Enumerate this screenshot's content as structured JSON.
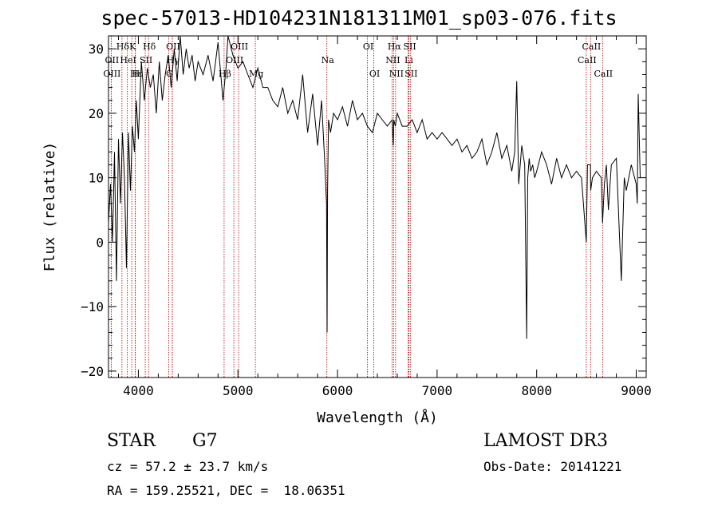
{
  "chart_data": {
    "type": "line",
    "title": "spec-57013-HD104231N181311M01_sp03-076.fits",
    "xlabel": "Wavelength (Å)",
    "ylabel": "Flux (relative)",
    "xlim": [
      3700,
      9100
    ],
    "ylim": [
      -21,
      32
    ],
    "xticks": [
      4000,
      5000,
      6000,
      7000,
      8000,
      9000
    ],
    "yticks": [
      -20,
      -10,
      0,
      10,
      20,
      30
    ],
    "series": [
      {
        "name": "spectrum",
        "x": [
          3700,
          3720,
          3740,
          3760,
          3780,
          3800,
          3820,
          3840,
          3860,
          3880,
          3900,
          3920,
          3940,
          3960,
          3980,
          4000,
          4030,
          4060,
          4090,
          4120,
          4150,
          4180,
          4210,
          4240,
          4270,
          4300,
          4330,
          4360,
          4390,
          4420,
          4450,
          4480,
          4510,
          4540,
          4570,
          4600,
          4650,
          4700,
          4750,
          4800,
          4850,
          4880,
          4900,
          4950,
          5000,
          5050,
          5100,
          5150,
          5200,
          5250,
          5300,
          5350,
          5400,
          5450,
          5500,
          5550,
          5600,
          5650,
          5700,
          5750,
          5800,
          5840,
          5870,
          5890,
          5895,
          5900,
          5910,
          5930,
          5960,
          6000,
          6050,
          6100,
          6150,
          6200,
          6250,
          6300,
          6350,
          6400,
          6450,
          6500,
          6550,
          6560,
          6565,
          6580,
          6600,
          6650,
          6700,
          6750,
          6800,
          6850,
          6900,
          6950,
          7000,
          7050,
          7100,
          7150,
          7200,
          7250,
          7300,
          7350,
          7400,
          7450,
          7500,
          7550,
          7600,
          7650,
          7700,
          7750,
          7780,
          7800,
          7820,
          7850,
          7880,
          7900,
          7910,
          7925,
          7940,
          7960,
          7980,
          8000,
          8050,
          8100,
          8150,
          8200,
          8250,
          8300,
          8350,
          8400,
          8450,
          8498,
          8510,
          8540,
          8542,
          8560,
          8600,
          8650,
          8662,
          8680,
          8700,
          8720,
          8750,
          8800,
          8850,
          8880,
          8900,
          8950,
          9000,
          9010,
          9020,
          9040
        ],
        "y": [
          3,
          9,
          0,
          14,
          -6,
          16,
          6,
          17,
          10,
          -4,
          17,
          8,
          18,
          14,
          22,
          16,
          28,
          22,
          27,
          24,
          26,
          20,
          28,
          22,
          26,
          29,
          24,
          30,
          25,
          32,
          26,
          30,
          27,
          29,
          25,
          28,
          26,
          29,
          25,
          31,
          22,
          27,
          32,
          29,
          27,
          28,
          26,
          24,
          27,
          24,
          24,
          22,
          21,
          24,
          20,
          22,
          19,
          26,
          17,
          23,
          15,
          22,
          13,
          6,
          -14,
          8,
          19,
          17,
          20,
          19,
          21,
          18,
          22,
          19,
          20,
          18,
          17,
          20,
          19,
          18,
          19,
          15,
          19,
          18,
          20,
          18,
          18,
          19,
          17,
          19,
          16,
          17,
          16,
          17,
          16,
          15,
          16,
          14,
          15,
          13,
          14,
          16,
          12,
          14,
          17,
          13,
          15,
          11,
          14,
          25,
          9,
          15,
          12,
          -15,
          10,
          13,
          11,
          12,
          10,
          11,
          14,
          12,
          9,
          13,
          10,
          12,
          10,
          11,
          10,
          0,
          12,
          12,
          8,
          10,
          11,
          10,
          3,
          9,
          12,
          5,
          12,
          13,
          -6,
          10,
          8,
          12,
          9,
          6,
          23,
          10
        ]
      }
    ],
    "lines": [
      {
        "name": "Hδ",
        "x": 3835,
        "row": 0
      },
      {
        "name": "K",
        "x": 3934,
        "row": 0
      },
      {
        "name": "Hδ",
        "x": 4102,
        "row": 0
      },
      {
        "name": "OII",
        "x": 4341,
        "row": 0
      },
      {
        "name": "OIII",
        "x": 5007,
        "row": 0
      },
      {
        "name": "OI",
        "x": 6300,
        "row": 0
      },
      {
        "name": "Hα",
        "x": 6563,
        "row": 0
      },
      {
        "name": "SII",
        "x": 6717,
        "row": 0
      },
      {
        "name": "CaII",
        "x": 8542,
        "row": 0
      },
      {
        "name": "OII",
        "x": 3727,
        "row": 1
      },
      {
        "name": "HeI",
        "x": 3889,
        "row": 1
      },
      {
        "name": "SII",
        "x": 4069,
        "row": 1
      },
      {
        "name": "Hγ",
        "x": 4340,
        "row": 1
      },
      {
        "name": "OIII",
        "x": 4959,
        "row": 1
      },
      {
        "name": "Na",
        "x": 5893,
        "row": 1
      },
      {
        "name": "NII",
        "x": 6548,
        "row": 1
      },
      {
        "name": "Li",
        "x": 6708,
        "row": 1
      },
      {
        "name": "CaII",
        "x": 8498,
        "row": 1
      },
      {
        "name": "OIII",
        "x": 3727,
        "row": 2
      },
      {
        "name": "Hε",
        "x": 3970,
        "row": 2
      },
      {
        "name": "H",
        "x": 3968,
        "row": 2
      },
      {
        "name": "G",
        "x": 4304,
        "row": 2
      },
      {
        "name": "Hβ",
        "x": 4861,
        "row": 2
      },
      {
        "name": "Mg",
        "x": 5175,
        "row": 2
      },
      {
        "name": "OI",
        "x": 6364,
        "row": 2
      },
      {
        "name": "NII",
        "x": 6583,
        "row": 2
      },
      {
        "name": "SII",
        "x": 6731,
        "row": 2
      },
      {
        "name": "CaII",
        "x": 8662,
        "row": 2
      }
    ]
  },
  "info": {
    "class": "STAR",
    "subclass": "G7",
    "survey": "LAMOST DR3",
    "cz": "cz = 57.2 ± 23.7 km/s",
    "obs_date": "Obs-Date: 20141221",
    "radec": "RA = 159.25521, DEC =  18.06351"
  },
  "colors": {
    "line_marker": "#b00000",
    "spectrum": "#000000"
  }
}
